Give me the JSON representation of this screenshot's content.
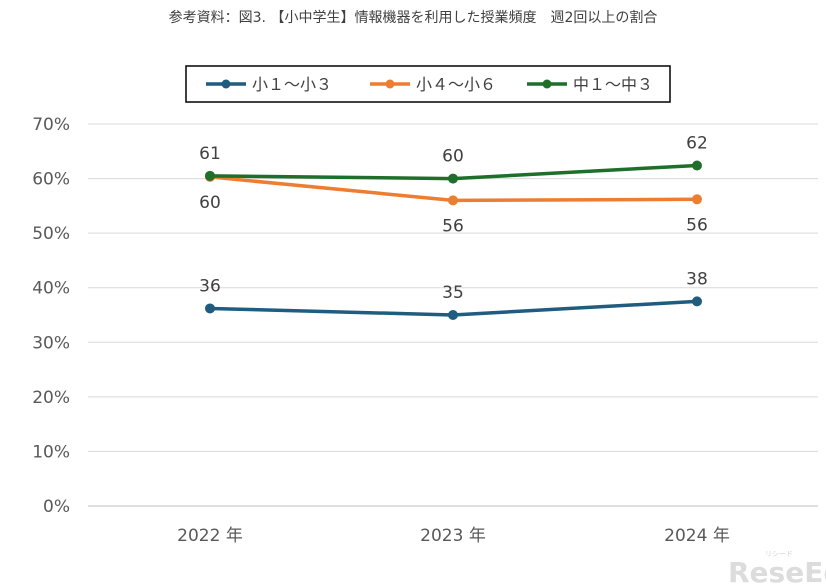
{
  "chart_data": {
    "type": "line",
    "title": "参考資料：図3. 【小中学生】情報機器を利用した授業頻度　週2回以上の割合",
    "categories": [
      "2022 年",
      "2023 年",
      "2024 年"
    ],
    "ylim": [
      0,
      70
    ],
    "yticks": [
      "0%",
      "10%",
      "20%",
      "30%",
      "40%",
      "50%",
      "60%",
      "70%"
    ],
    "grid": true,
    "legend_position": "top",
    "series": [
      {
        "name": "小１～小３",
        "color": "#1f5c7f",
        "values": [
          36.2,
          35.0,
          37.5
        ],
        "labels": [
          "36",
          "35",
          "38"
        ],
        "label_pos": [
          "above",
          "above",
          "above"
        ]
      },
      {
        "name": "小４～小６",
        "color": "#ed7d31",
        "values": [
          60.3,
          56.0,
          56.2
        ],
        "labels": [
          "60",
          "56",
          "56"
        ],
        "label_pos": [
          "below",
          "below",
          "below"
        ]
      },
      {
        "name": "中１～中３",
        "color": "#1e6f2a",
        "values": [
          60.5,
          60.0,
          62.4
        ],
        "labels": [
          "61",
          "60",
          "62"
        ],
        "label_pos": [
          "above",
          "above",
          "above"
        ]
      }
    ]
  },
  "watermark": {
    "logo_text": "ReseEd",
    "logo_sub": "リシード"
  }
}
